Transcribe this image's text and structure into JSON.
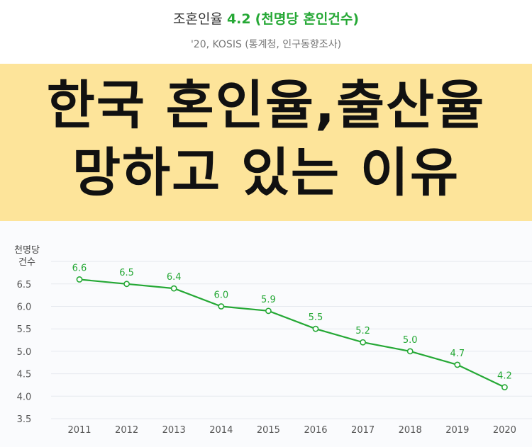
{
  "header": {
    "title_prefix": "조혼인율",
    "title_value": "4.2",
    "title_unit": "(천명당 혼인건수)",
    "source": "'20, KOSIS (통계청, 인구동향조사)"
  },
  "banner": {
    "line1": "한국 혼인율,출산율",
    "line2": "망하고 있는 이유"
  },
  "colors": {
    "accent": "#25a835",
    "banner_bg": "#fde49a",
    "grid": "#e6e9ef"
  },
  "chart_data": {
    "type": "line",
    "title": "조혼인율 4.2 (천명당 혼인건수)",
    "source": "'20, KOSIS (통계청, 인구동향조사)",
    "ylabel_lines": [
      "천명당",
      "건수"
    ],
    "categories": [
      "2011",
      "2012",
      "2013",
      "2014",
      "2015",
      "2016",
      "2017",
      "2018",
      "2019",
      "2020"
    ],
    "values": [
      6.6,
      6.5,
      6.4,
      6.0,
      5.9,
      5.5,
      5.2,
      5.0,
      4.7,
      4.2
    ],
    "data_labels": [
      "6.6",
      "6.5",
      "6.4",
      "6.0",
      "5.9",
      "5.5",
      "5.2",
      "5.0",
      "4.7",
      "4.2"
    ],
    "yticks": [
      "3.5",
      "4.0",
      "4.5",
      "5.0",
      "5.5",
      "6.0",
      "6.5"
    ],
    "ylim": [
      3.5,
      6.85
    ],
    "grid": true,
    "legend": "none"
  }
}
